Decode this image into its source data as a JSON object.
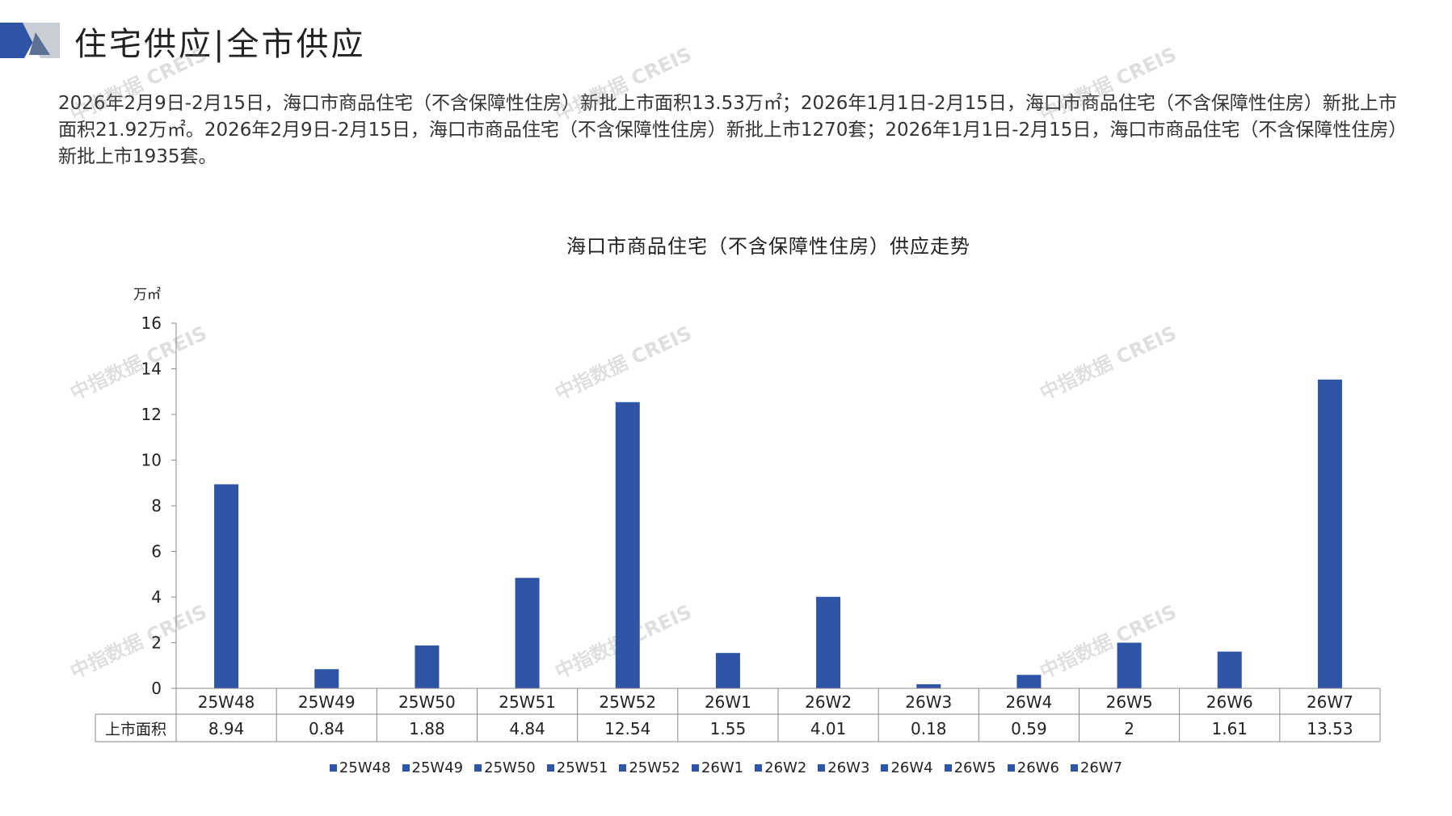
{
  "header": {
    "title": "住宅供应|全市供应"
  },
  "summary": "2026年2月9日-2月15日，海口市商品住宅（不含保障性住房）新批上市面积13.53万㎡；2026年1月1日-2月15日，海口市商品住宅（不含保障性住房）新批上市面积21.92万㎡。2026年2月9日-2月15日，海口市商品住宅（不含保障性住房）新批上市1270套；2026年1月1日-2月15日，海口市商品住宅（不含保障性住房）新批上市1935套。",
  "watermark": "中指数据 CREIS",
  "colors": {
    "bar": "#2E55A5",
    "logo_dark": "#2E55A5",
    "logo_light": "#C9CDD6"
  },
  "chart_data": {
    "type": "bar",
    "title": "海口市商品住宅（不含保障性住房）供应走势",
    "yunit": "万㎡",
    "ylim": [
      0,
      16
    ],
    "yticks": [
      0,
      2,
      4,
      6,
      8,
      10,
      12,
      14,
      16
    ],
    "grid": false,
    "legend_position": "bottom",
    "categories": [
      "25W48",
      "25W49",
      "25W50",
      "25W51",
      "25W52",
      "26W1",
      "26W2",
      "26W3",
      "26W4",
      "26W5",
      "26W6",
      "26W7"
    ],
    "table_row_label": "上市面积",
    "values": [
      8.94,
      0.84,
      1.88,
      4.84,
      12.54,
      1.55,
      4.01,
      0.18,
      0.59,
      2,
      1.61,
      13.53
    ],
    "value_labels": [
      "8.94",
      "0.84",
      "1.88",
      "4.84",
      "12.54",
      "1.55",
      "4.01",
      "0.18",
      "0.59",
      "2",
      "1.61",
      "13.53"
    ]
  }
}
